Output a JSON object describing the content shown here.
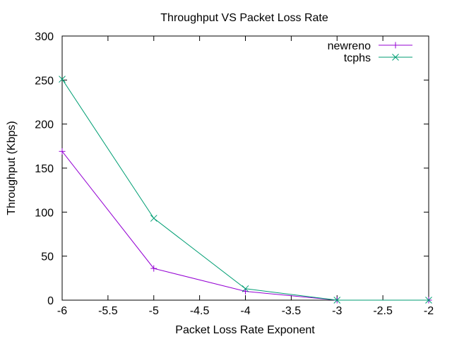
{
  "chart_data": {
    "type": "line",
    "title": "Throughput VS Packet Loss Rate",
    "xlabel": "Packet Loss Rate Exponent",
    "ylabel": "Throughput (Kbps)",
    "xlim": [
      -6,
      -2
    ],
    "ylim": [
      0,
      300
    ],
    "xticks": [
      -6,
      -5.5,
      -5,
      -4.5,
      -4,
      -3.5,
      -3,
      -2.5,
      -2
    ],
    "yticks": [
      0,
      50,
      100,
      150,
      200,
      250,
      300
    ],
    "grid": false,
    "legend_position": "top-right",
    "series": [
      {
        "name": "newreno",
        "color": "#9400d3",
        "marker": "plus",
        "x": [
          -6,
          -5,
          -4,
          -3,
          -2
        ],
        "y": [
          169,
          36,
          10,
          0,
          0
        ]
      },
      {
        "name": "tcphs",
        "color": "#009e73",
        "marker": "cross",
        "x": [
          -6,
          -5,
          -4,
          -3,
          -2
        ],
        "y": [
          251,
          93,
          13,
          0,
          0
        ]
      }
    ]
  }
}
